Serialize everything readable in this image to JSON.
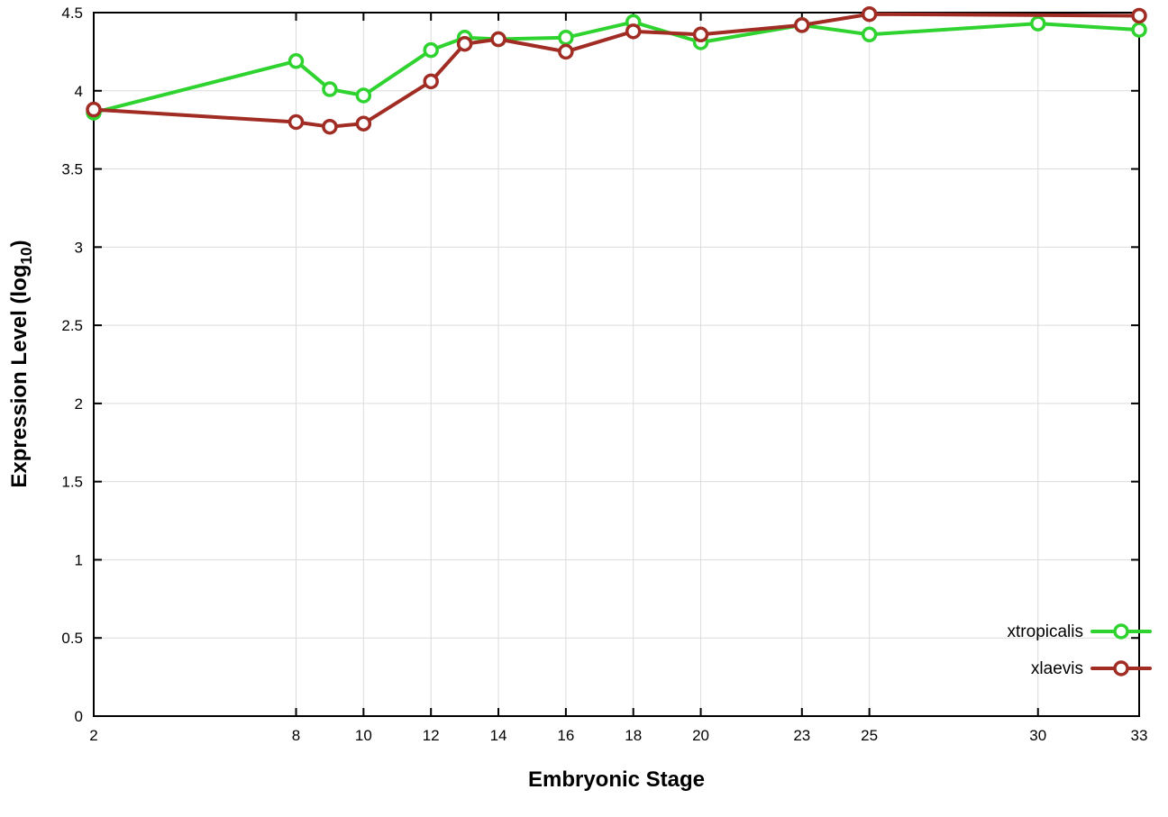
{
  "chart_data": {
    "type": "line",
    "title": "",
    "xlabel": "Embryonic Stage",
    "ylabel": "Expression Level (log10)",
    "ylabel_parts": {
      "prefix": "Expression Level (log",
      "sub": "10",
      "suffix": ")"
    },
    "xlim": [
      2,
      33
    ],
    "ylim": [
      0,
      4.5
    ],
    "xticks": [
      2,
      8,
      10,
      12,
      14,
      16,
      18,
      20,
      23,
      25,
      30,
      33
    ],
    "yticks": [
      0,
      0.5,
      1,
      1.5,
      2,
      2.5,
      3,
      3.5,
      4,
      4.5
    ],
    "grid": true,
    "x": [
      2,
      8,
      9,
      10,
      12,
      13,
      14,
      16,
      18,
      20,
      23,
      25,
      30,
      33
    ],
    "series": [
      {
        "name": "xtropicalis",
        "color": "#2fd32f",
        "values": [
          3.86,
          4.19,
          4.01,
          3.97,
          4.26,
          4.34,
          4.33,
          4.34,
          4.44,
          4.31,
          4.42,
          4.36,
          4.43,
          4.39
        ]
      },
      {
        "name": "xlaevis",
        "color": "#a02c24",
        "values": [
          3.88,
          3.8,
          3.77,
          3.79,
          4.06,
          4.3,
          4.33,
          4.25,
          4.38,
          4.36,
          4.42,
          4.49,
          null,
          4.48
        ]
      }
    ],
    "legend": {
      "position": "bottom-right",
      "entries": [
        "xtropicalis",
        "xlaevis"
      ]
    },
    "colors": {
      "grid": "#dcdcdc",
      "border": "#000000",
      "marker_fill": "#ffffff"
    }
  }
}
